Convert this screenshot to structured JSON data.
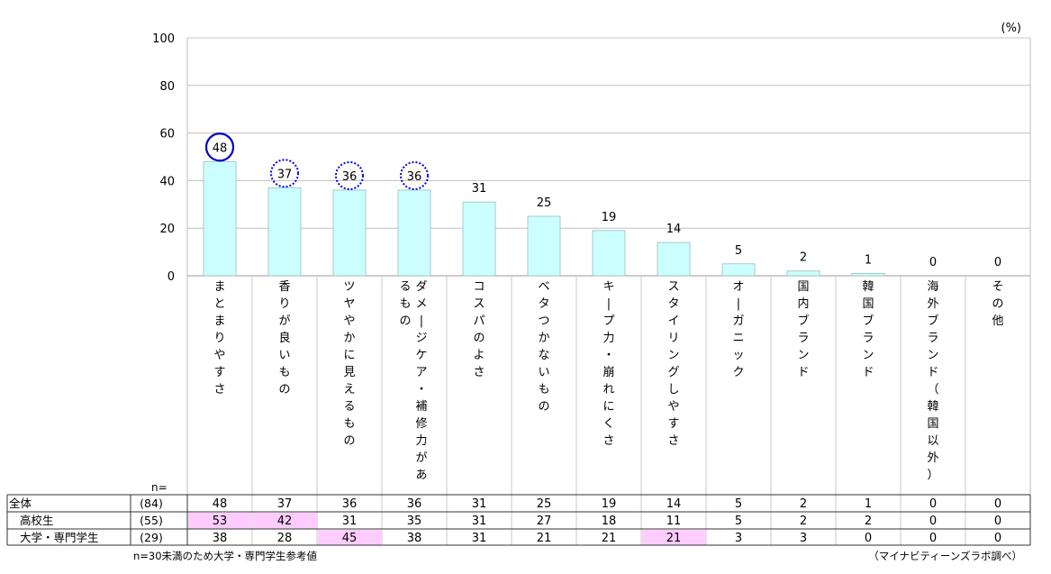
{
  "chart_data": {
    "type": "bar",
    "unit_label": "(%)",
    "ylim": [
      0,
      100
    ],
    "yticks": [
      0,
      20,
      40,
      60,
      80,
      100
    ],
    "grid": true,
    "categories": [
      "まとまりやすさ",
      "香りが良いもの",
      "ツヤやかに見えるもの",
      "ダメージケア・補修力があるもの",
      "コスパのよさ",
      "ベタつかないもの",
      "キープ力・崩れにくさ",
      "スタイリングしやすさ",
      "オーガニック",
      "国内ブランド",
      "韓国ブランド",
      "海外ブランド（韓国以外）",
      "その他"
    ],
    "category_columns": [
      [
        "まとまりやすさ"
      ],
      [
        "香りが良いもの"
      ],
      [
        "ツヤやかに見えるもの"
      ],
      [
        "ダメージケア・補修力があ",
        "るもの"
      ],
      [
        "コスパのよさ"
      ],
      [
        "ベタつかないもの"
      ],
      [
        "キープ力・崩れにくさ"
      ],
      [
        "スタイリングしやすさ"
      ],
      [
        "オーガニック"
      ],
      [
        "国内ブランド"
      ],
      [
        "韓国ブランド"
      ],
      [
        "海外ブランド（韓国以外）"
      ],
      [
        "その他"
      ]
    ],
    "values": [
      48,
      37,
      36,
      36,
      31,
      25,
      19,
      14,
      5,
      2,
      1,
      0,
      0
    ],
    "value_labels": [
      "48",
      "37",
      "36",
      "36",
      "31",
      "25",
      "19",
      "14",
      "5",
      "2",
      "1",
      "0",
      "0"
    ],
    "highlight_top": [
      0
    ],
    "highlight_dotted": [
      1,
      2,
      3
    ],
    "colors": {
      "bar_fill": "#ccffff",
      "bar_stroke": "#99bbbb",
      "circle_solid": "#0000cc",
      "circle_dotted": "#0000ee",
      "cell_highlight": "#ffccff",
      "grid": "#c0c0c0"
    },
    "table": {
      "n_header": "n=",
      "rows": [
        {
          "label": "全体",
          "n": "(84)",
          "values": [
            "48",
            "37",
            "36",
            "36",
            "31",
            "25",
            "19",
            "14",
            "5",
            "2",
            "1",
            "0",
            "0"
          ],
          "highlight": []
        },
        {
          "label": "高校生",
          "n": "(55)",
          "values": [
            "53",
            "42",
            "31",
            "35",
            "31",
            "27",
            "18",
            "11",
            "5",
            "2",
            "2",
            "0",
            "0"
          ],
          "highlight": [
            0,
            1
          ]
        },
        {
          "label": "大学・専門学生",
          "n": "(29)",
          "values": [
            "38",
            "28",
            "45",
            "38",
            "31",
            "21",
            "21",
            "21",
            "3",
            "3",
            "0",
            "0",
            "0"
          ],
          "highlight": [
            2,
            7
          ]
        }
      ]
    },
    "footnote": "n=30未満のため大学・専門学生参考値",
    "source": "（マイナビティーンズラボ調べ）"
  }
}
